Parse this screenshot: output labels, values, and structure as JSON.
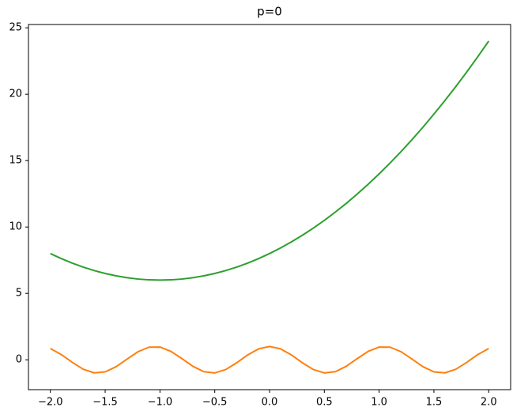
{
  "chart_data": {
    "type": "line",
    "title": "p=0",
    "x": [
      -2.0,
      -1.9,
      -1.8,
      -1.7,
      -1.6,
      -1.5,
      -1.4,
      -1.3,
      -1.2,
      -1.1,
      -1.0,
      -0.9,
      -0.8,
      -0.7,
      -0.6,
      -0.5,
      -0.4,
      -0.3,
      -0.2,
      -0.1,
      0.0,
      0.1,
      0.2,
      0.3,
      0.4,
      0.5,
      0.6,
      0.7,
      0.8,
      0.9,
      1.0,
      1.1,
      1.2,
      1.3,
      1.4,
      1.5,
      1.6,
      1.7,
      1.8,
      1.9,
      2.0
    ],
    "series": [
      {
        "color": "#ff7f0e",
        "values": [
          0.844,
          0.394,
          -0.193,
          -0.715,
          -0.985,
          -0.911,
          -0.519,
          0.054,
          0.608,
          0.95,
          0.96,
          0.635,
          0.087,
          -0.49,
          -0.897,
          -0.99,
          -0.737,
          -0.227,
          0.362,
          0.825,
          1,
          0.825,
          0.362,
          -0.227,
          -0.737,
          -0.99,
          -0.897,
          -0.49,
          0.087,
          0.635,
          0.96,
          0.95,
          0.608,
          0.054,
          -0.519,
          -0.911,
          -0.985,
          -0.715,
          -0.193,
          0.394,
          0.844
        ]
      },
      {
        "color": "#2ca02c",
        "values": [
          8,
          7.62,
          7.28,
          6.98,
          6.72,
          6.5,
          6.32,
          6.18,
          6.08,
          6.02,
          6,
          6.02,
          6.08,
          6.18,
          6.32,
          6.5,
          6.72,
          6.98,
          7.28,
          7.62,
          8,
          8.42,
          8.88,
          9.38,
          9.92,
          10.5,
          11.12,
          11.78,
          12.48,
          13.22,
          14,
          14.82,
          15.68,
          16.58,
          17.52,
          18.5,
          19.52,
          20.58,
          21.68,
          22.82,
          24
        ]
      }
    ],
    "xlim": [
      -2.2,
      2.2
    ],
    "xticks": [
      {
        "value": -2.0,
        "label": "−2.0"
      },
      {
        "value": -1.5,
        "label": "−1.5"
      },
      {
        "value": -1.0,
        "label": "−1.0"
      },
      {
        "value": -0.5,
        "label": "−0.5"
      },
      {
        "value": 0.0,
        "label": "0.0"
      },
      {
        "value": 0.5,
        "label": "0.5"
      },
      {
        "value": 1.0,
        "label": "1.0"
      },
      {
        "value": 1.5,
        "label": "1.5"
      },
      {
        "value": 2.0,
        "label": "2.0"
      }
    ],
    "ylim": [
      -2.25,
      25.25
    ],
    "yticks": [
      0,
      5,
      10,
      15,
      20,
      25
    ],
    "grid": false
  }
}
